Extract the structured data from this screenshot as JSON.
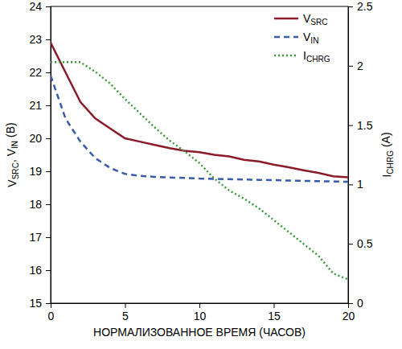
{
  "chart_data": {
    "type": "line",
    "x_label": "НОРМАЛИЗОВАННОЕ ВРЕМЯ (ЧАСОВ)",
    "y_label": "VSRC, VIN (B)",
    "y2_label": "ICHRG (A)",
    "x": [
      0,
      1,
      2,
      3,
      4,
      5,
      6,
      7,
      8,
      9,
      10,
      11,
      12,
      13,
      14,
      15,
      16,
      17,
      18,
      19,
      20
    ],
    "series": [
      {
        "name": "VSRC",
        "color": "#8b1a2b",
        "line_style": "solid",
        "values": [
          22.9,
          22.0,
          21.1,
          20.6,
          20.3,
          20.0,
          19.9,
          19.8,
          19.7,
          19.62,
          19.58,
          19.5,
          19.45,
          19.35,
          19.3,
          19.2,
          19.12,
          19.03,
          18.95,
          18.85,
          18.82
        ]
      },
      {
        "name": "VIN",
        "color": "#3a5ba8",
        "line_style": "dashed",
        "values": [
          21.9,
          20.6,
          19.9,
          19.4,
          19.1,
          18.92,
          18.86,
          18.83,
          18.81,
          18.8,
          18.78,
          18.77,
          18.76,
          18.75,
          18.74,
          18.73,
          18.72,
          18.71,
          18.7,
          18.69,
          18.68
        ]
      },
      {
        "name": "ICHRG",
        "color": "#3a9a3a",
        "line_style": "dotted",
        "axis": "y2",
        "values": [
          2.03,
          2.03,
          2.03,
          1.95,
          1.85,
          1.72,
          1.6,
          1.48,
          1.37,
          1.28,
          1.18,
          1.05,
          0.95,
          0.88,
          0.8,
          0.7,
          0.6,
          0.5,
          0.4,
          0.25,
          0.2
        ]
      }
    ],
    "xlim": [
      0,
      20
    ],
    "xticks": [
      0,
      5,
      10,
      15,
      20
    ],
    "ylim": [
      15,
      24
    ],
    "yticks": [
      15,
      16,
      17,
      18,
      19,
      20,
      21,
      22,
      23,
      24
    ],
    "y2lim": [
      0,
      2.5
    ],
    "y2ticks": [
      0,
      0.5,
      1,
      1.5,
      2,
      2.5
    ],
    "legend": "upper right",
    "grid": false
  }
}
